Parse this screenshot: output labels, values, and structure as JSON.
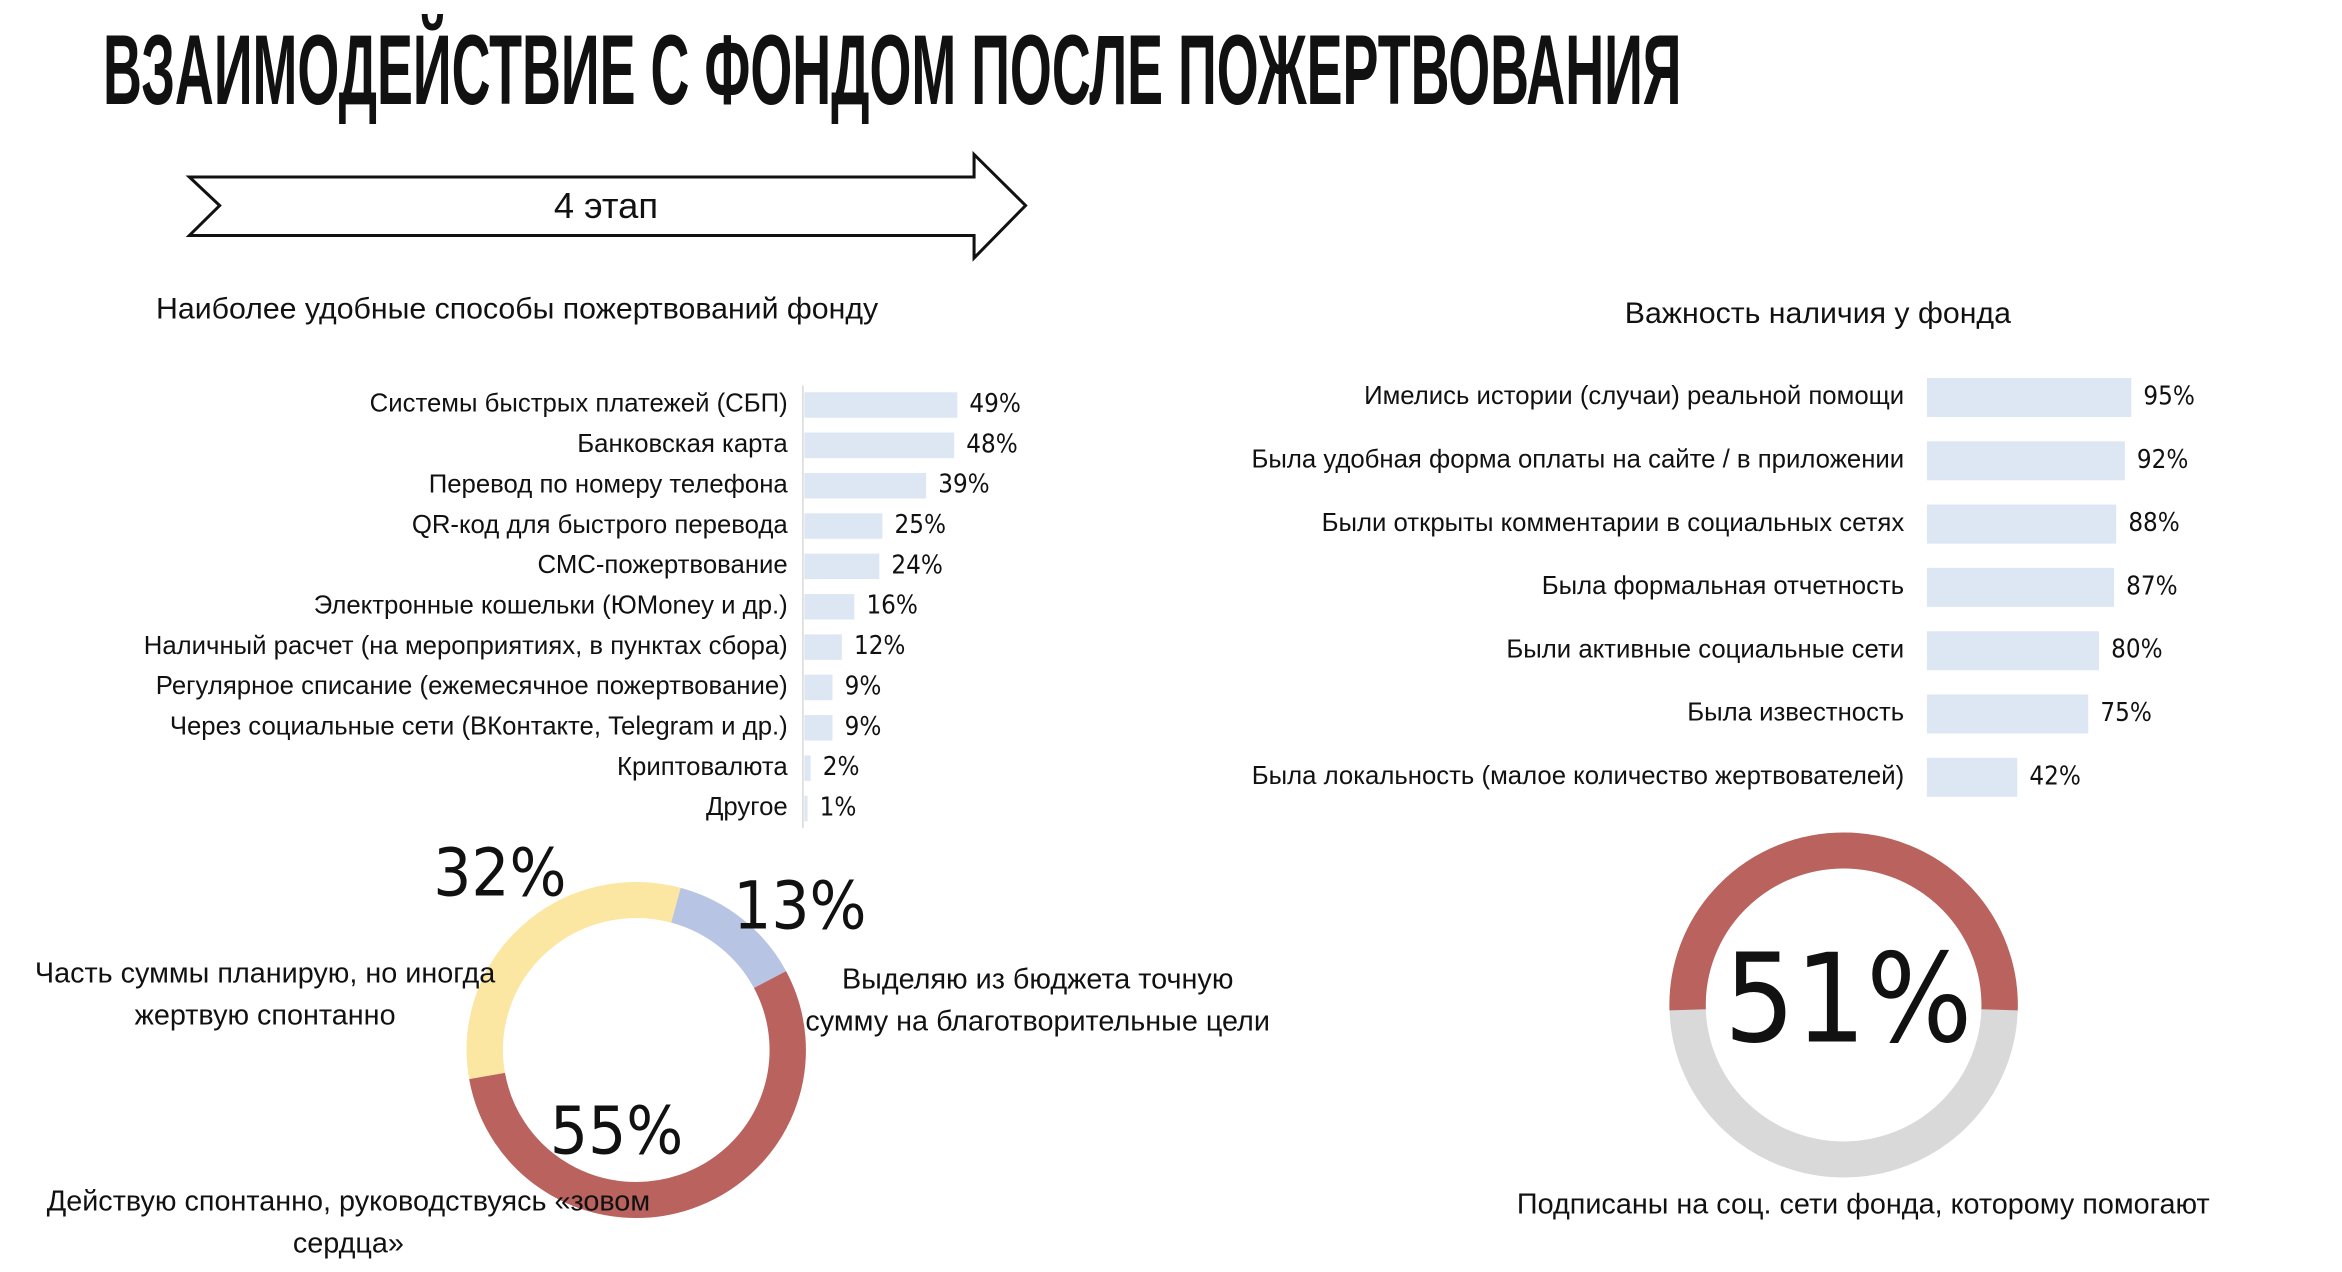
{
  "title": "ВЗАИМОДЕЙСТВИЕ С ФОНДОМ ПОСЛЕ ПОЖЕРТВОВАНИЯ",
  "stage": "4 этап",
  "chart_data": [
    {
      "type": "bar",
      "orientation": "horizontal",
      "title": "Наиболее удобные способы пожертвований фонду",
      "color": "#dde7f3",
      "categories": [
        "Системы быстрых платежей (СБП)",
        "Банковская карта",
        "Перевод по номеру телефона",
        "QR-код для быстрого перевода",
        "СМС-пожертвование",
        "Электронные кошельки (ЮMoney и др.)",
        "Наличный расчет (на мероприятиях, в пунктах сбора)",
        "Регулярное списание (ежемесячное пожертвование)",
        "Через социальные сети (ВКонтакте, Telegram и др.)",
        "Криптовалюта",
        "Другое"
      ],
      "values": [
        49,
        48,
        39,
        25,
        24,
        16,
        12,
        9,
        9,
        2,
        1
      ],
      "value_labels": [
        "49%",
        "48%",
        "39%",
        "25%",
        "24%",
        "16%",
        "12%",
        "9%",
        "9%",
        "2%",
        "1%"
      ]
    },
    {
      "type": "bar",
      "orientation": "horizontal",
      "title": "Важность наличия у фонда",
      "color": "#dde7f3",
      "categories": [
        "Имелись истории (случаи) реальной помощи",
        "Была удобная форма оплаты на сайте / в приложении",
        "Были открыты комментарии в социальных сетях",
        "Была формальная отчетность",
        "Были активные социальные сети",
        "Была известность",
        "Была локальность (малое количество жертвователей)"
      ],
      "values": [
        95,
        92,
        88,
        87,
        80,
        75,
        42
      ],
      "value_labels": [
        "95%",
        "92%",
        "88%",
        "87%",
        "80%",
        "75%",
        "42%"
      ]
    },
    {
      "type": "donut",
      "categories": [
        "Часть суммы планирую, но иногда жертвую спонтанно",
        "Выделяю из бюджета точную сумму на благотворительные цели",
        "Действую спонтанно, руководствуясь «зовом сердца»"
      ],
      "values": [
        32,
        13,
        55
      ],
      "value_labels": [
        "32%",
        "13%",
        "55%"
      ],
      "colors": [
        "#fbe6a2",
        "#b7c4e4",
        "#b9625e"
      ]
    },
    {
      "type": "gauge",
      "caption": "Подписаны на соц. сети фонда, которому помогают",
      "values": [
        51
      ],
      "value_labels": [
        "51%"
      ],
      "colors": [
        "#b9625e"
      ]
    }
  ]
}
